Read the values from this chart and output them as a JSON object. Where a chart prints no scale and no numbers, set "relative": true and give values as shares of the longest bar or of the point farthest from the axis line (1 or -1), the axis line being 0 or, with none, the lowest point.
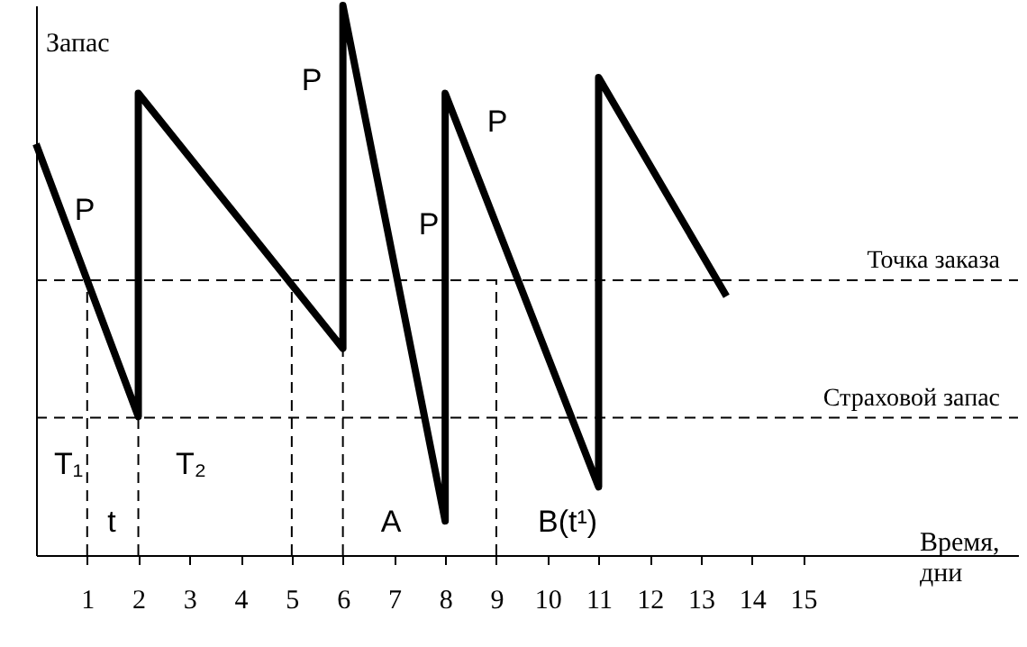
{
  "chart_data": {
    "type": "line",
    "relative": true,
    "xlabel": "Время, дни",
    "ylabel": "Запас",
    "x": [
      0,
      2,
      2,
      6,
      6,
      8,
      8,
      11,
      11,
      13.5
    ],
    "series": [
      {
        "color": "#000000",
        "values": [
          0.748,
          0.252,
          0.84,
          0.376,
          1,
          0.062,
          0.84,
          0.124,
          0.869,
          0.471
        ]
      }
    ],
    "xlim": [
      0,
      19.2
    ],
    "xticks": [
      1,
      2,
      3,
      4,
      5,
      6,
      7,
      8,
      9,
      10,
      11,
      12,
      13,
      14,
      15
    ],
    "ref_lines": [
      {
        "axis": "y",
        "value": 0.5,
        "label": "Точка заказа",
        "color": "#000000",
        "line_style": "dashed"
      },
      {
        "axis": "y",
        "value": 0.25,
        "label": "Страховой запас",
        "color": "#000000",
        "line_style": "dashed"
      },
      {
        "axis": "x",
        "value": 1,
        "label": null,
        "color": "#000000",
        "line_style": "dashed"
      },
      {
        "axis": "x",
        "value": 2,
        "label": null,
        "color": "#000000",
        "line_style": "dashed"
      },
      {
        "axis": "x",
        "value": 5,
        "label": null,
        "color": "#000000",
        "line_style": "dashed"
      },
      {
        "axis": "x",
        "value": 6,
        "label": null,
        "color": "#000000",
        "line_style": "dashed"
      },
      {
        "axis": "x",
        "value": 9,
        "label": null,
        "color": "#000000",
        "line_style": "dashed"
      }
    ],
    "annotations": [
      "P",
      "P",
      "P",
      "P",
      "T₁",
      "T₂",
      "t",
      "A",
      "B(t¹)"
    ],
    "grid": false,
    "marker": "none",
    "line_style": "solid"
  }
}
